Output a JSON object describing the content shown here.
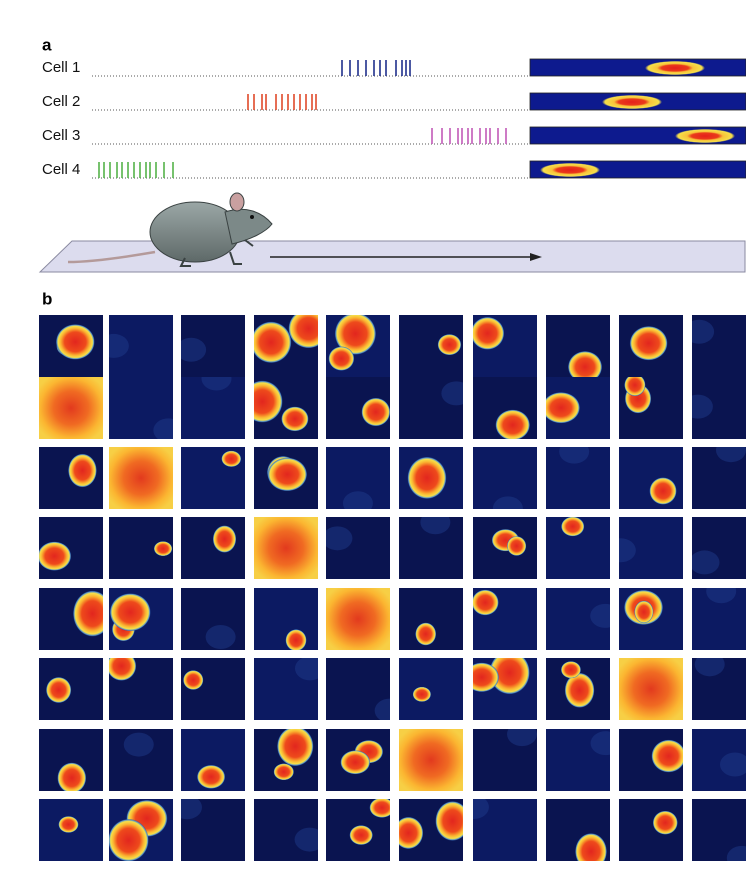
{
  "panels": [
    {
      "label": "a",
      "rows": [
        {
          "label": "Cell 1"
        },
        {
          "label": "Cell 2"
        },
        {
          "label": "Cell 3"
        },
        {
          "label": "Cell 4"
        }
      ]
    },
    {
      "label": "b"
    }
  ]
}
